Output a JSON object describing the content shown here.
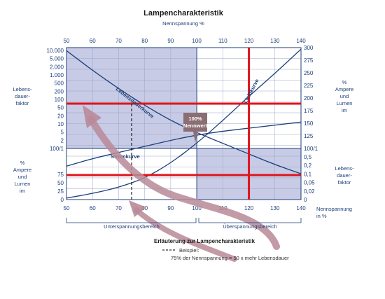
{
  "chart_data": {
    "type": "line",
    "title": "Lampencharakteristik",
    "top_axis_label": "Nennspannung %",
    "x_ticks": [
      50,
      60,
      70,
      80,
      90,
      100,
      110,
      120,
      130,
      140
    ],
    "x_unit_label": "Nennspannung in %",
    "xlim": [
      50,
      140
    ],
    "left_top_axis": {
      "label": [
        "Lebens-",
        "dauer-",
        "faktor"
      ],
      "ticks": [
        "10.000",
        "5.000",
        "2.000",
        "1.000",
        "500",
        "200",
        "100",
        "50",
        "20",
        "10",
        "5",
        "2",
        "100/1"
      ]
    },
    "left_bottom_axis": {
      "label": [
        "%",
        "Ampere",
        "und",
        "Lumen",
        "im"
      ],
      "ticks": [
        "100/1",
        "75",
        "50",
        "25",
        "0"
      ]
    },
    "right_top_axis": {
      "label": [
        "%",
        "Ampere",
        "und",
        "Lumen",
        "im"
      ],
      "ticks": [
        "300",
        "275",
        "250",
        "225",
        "200",
        "175",
        "150",
        "125",
        "100/1"
      ]
    },
    "right_bottom_axis": {
      "label": [
        "Lebens-",
        "dauer-",
        "faktor"
      ],
      "ticks": [
        "100/1",
        "0,5",
        "0,2",
        "0,1",
        "0,05",
        "0,02",
        "0"
      ]
    },
    "series": [
      {
        "name": "Lebensdauerkurve",
        "x": [
          50,
          60,
          70,
          80,
          90,
          100,
          110,
          120,
          130,
          140
        ],
        "y_norm": [
          0.98,
          0.85,
          0.73,
          0.62,
          0.52,
          0.44,
          0.37,
          0.3,
          0.23,
          0.17
        ]
      },
      {
        "name": "Stromkurve",
        "x": [
          50,
          60,
          70,
          80,
          90,
          100,
          110,
          120,
          130,
          140
        ],
        "y_norm": [
          0.22,
          0.27,
          0.31,
          0.35,
          0.39,
          0.425,
          0.45,
          0.47,
          0.49,
          0.51
        ]
      },
      {
        "name": "Lichtkurve",
        "x": [
          50,
          60,
          70,
          80,
          90,
          100,
          110,
          120,
          130,
          140
        ],
        "y_norm": [
          0.01,
          0.04,
          0.08,
          0.14,
          0.24,
          0.37,
          0.52,
          0.68,
          0.83,
          0.99
        ]
      }
    ],
    "annotations": {
      "nominal_badge": [
        "100%",
        "Nennwert"
      ],
      "region_under": "Unterspannungsbereich",
      "region_over": "Überspannungsbereich"
    },
    "legend": {
      "title": "Erläuterung zur Lampencharakteristik",
      "line1": "Beispiel:",
      "line2": "75% der Nennspannung = 50 x mehr Lebensdauer"
    },
    "grid": true,
    "colors": {
      "curve": "#1d3f7a",
      "highlight": "#e0141b",
      "shade": "#c7cbe6",
      "grid": "#9aa7c7",
      "arrow": "#b98a98",
      "badge": "#8b6e73"
    }
  }
}
